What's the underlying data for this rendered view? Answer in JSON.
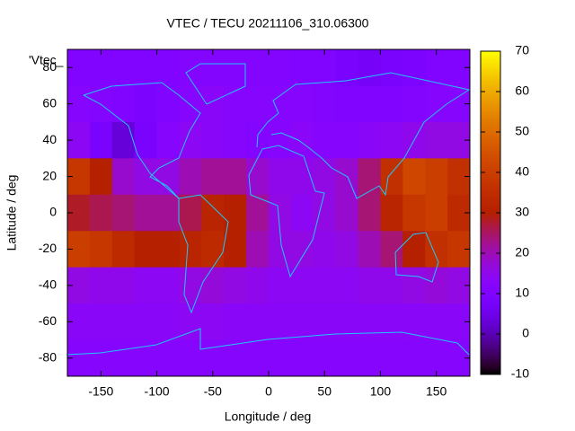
{
  "chart_data": {
    "type": "heatmap",
    "title": "VTEC / TECU 20211106_310.06300",
    "xlabel": "Longitude / deg",
    "ylabel": "Latitude / deg",
    "legend": "'Vtec_",
    "x": [
      -170,
      -150,
      -130,
      -110,
      -90,
      -70,
      -50,
      -30,
      -10,
      10,
      30,
      50,
      70,
      90,
      110,
      130,
      150,
      170
    ],
    "y": [
      80,
      60,
      40,
      20,
      0,
      -20,
      -40,
      -60,
      -80
    ],
    "z": [
      [
        10,
        10,
        10,
        10,
        10,
        11,
        11,
        11,
        11,
        11,
        10,
        10,
        8,
        7,
        8,
        9,
        10,
        10
      ],
      [
        12,
        11,
        10,
        9,
        10,
        12,
        13,
        12,
        12,
        12,
        12,
        11,
        10,
        10,
        10,
        11,
        12,
        12
      ],
      [
        14,
        8,
        3,
        8,
        12,
        14,
        13,
        12,
        11,
        12,
        13,
        12,
        12,
        13,
        14,
        15,
        16,
        16
      ],
      [
        38,
        30,
        18,
        16,
        16,
        20,
        22,
        22,
        18,
        15,
        15,
        16,
        18,
        24,
        36,
        42,
        40,
        36
      ],
      [
        28,
        26,
        24,
        22,
        22,
        26,
        32,
        30,
        22,
        16,
        14,
        16,
        18,
        24,
        32,
        38,
        40,
        34
      ],
      [
        40,
        38,
        34,
        30,
        30,
        32,
        34,
        30,
        20,
        16,
        16,
        15,
        16,
        20,
        24,
        30,
        36,
        38
      ],
      [
        16,
        15,
        15,
        14,
        14,
        16,
        17,
        16,
        15,
        14,
        14,
        14,
        14,
        15,
        15,
        16,
        17,
        16
      ],
      [
        13,
        13,
        13,
        13,
        13,
        14,
        14,
        13,
        13,
        13,
        13,
        13,
        13,
        13,
        13,
        13,
        13,
        13
      ],
      [
        12,
        12,
        12,
        12,
        12,
        12,
        12,
        12,
        12,
        12,
        12,
        12,
        12,
        12,
        12,
        12,
        12,
        12
      ]
    ],
    "xlim": [
      -180,
      180
    ],
    "ylim": [
      -90,
      90
    ],
    "xticks": [
      -150,
      -100,
      -50,
      0,
      50,
      100,
      150
    ],
    "yticks": [
      -80,
      -60,
      -40,
      -20,
      0,
      20,
      40,
      60,
      80
    ],
    "zlim": [
      -10,
      70
    ],
    "zticks": [
      -10,
      0,
      10,
      20,
      30,
      40,
      50,
      60,
      70
    ]
  }
}
